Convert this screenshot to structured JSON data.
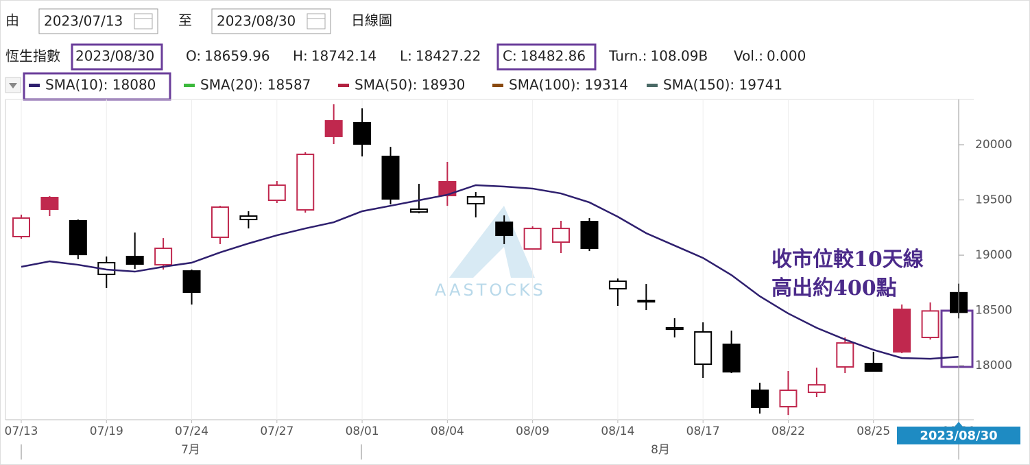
{
  "header": {
    "from_label": "由",
    "from_date": "2023/07/13",
    "to_label": "至",
    "to_date": "2023/08/30",
    "chart_kind": "日線圖"
  },
  "quote": {
    "name": "恆生指數",
    "date": "2023/08/30",
    "items": [
      {
        "label": "O:",
        "value": "18659.96"
      },
      {
        "label": "H:",
        "value": "18742.14"
      },
      {
        "label": "L:",
        "value": "18427.22"
      },
      {
        "label": "C:",
        "value": "18482.86"
      },
      {
        "label": "Turn.:",
        "value": "108.09B"
      },
      {
        "label": "Vol.:",
        "value": "0.000"
      }
    ]
  },
  "legend": [
    {
      "text": "SMA(10): 18080",
      "color": "#2e1f6e",
      "active": true
    },
    {
      "text": "SMA(20): 18587",
      "color": "#3cb93c",
      "active": false
    },
    {
      "text": "SMA(50): 18930",
      "color": "#b22240",
      "active": false
    },
    {
      "text": "SMA(100): 19314",
      "color": "#8a4a10",
      "active": false
    },
    {
      "text": "SMA(150): 19741",
      "color": "#4a6a66",
      "active": false
    }
  ],
  "chart_data": {
    "type": "candlestick",
    "categories": [
      "07/13",
      null,
      null,
      "07/19",
      null,
      null,
      "07/24",
      null,
      null,
      "07/27",
      null,
      null,
      "08/01",
      null,
      null,
      "08/04",
      null,
      null,
      "08/09",
      null,
      null,
      "08/14",
      null,
      null,
      "08/17",
      null,
      null,
      "08/22",
      null,
      null,
      "08/25",
      null,
      null,
      "08/30"
    ],
    "months": [
      "7月",
      "8月"
    ],
    "open": [
      19168,
      19522,
      19311,
      18826,
      18988,
      18913,
      18857,
      19162,
      19323,
      19497,
      19410,
      20217,
      20199,
      19894,
      19391,
      19665,
      19466,
      19298,
      19056,
      19118,
      19304,
      18696,
      18578,
      18329,
      18013,
      18193,
      17777,
      17628,
      17758,
      17988,
      18019,
      18510,
      18255,
      18659.96
    ],
    "high": [
      19367,
      19534,
      19323,
      18988,
      19205,
      19155,
      18870,
      19447,
      19398,
      19671,
      19932,
      20366,
      20329,
      19981,
      19646,
      19845,
      19572,
      19360,
      19261,
      19311,
      19336,
      18789,
      18739,
      18429,
      18392,
      18317,
      17845,
      17951,
      17982,
      18255,
      18125,
      18553,
      18572,
      18742.14
    ],
    "low": [
      19149,
      19354,
      18963,
      18702,
      18876,
      18870,
      18553,
      19100,
      19242,
      19472,
      19385,
      20006,
      19894,
      19460,
      19379,
      19447,
      19342,
      19100,
      19050,
      19019,
      19037,
      18541,
      18503,
      18255,
      17889,
      17932,
      17566,
      17553,
      17715,
      17932,
      17951,
      18112,
      18236,
      18427.22
    ],
    "close": [
      19336,
      19416,
      19006,
      18932,
      18919,
      19062,
      18665,
      19435,
      19354,
      19634,
      19913,
      20075,
      20006,
      19509,
      19416,
      19540,
      19528,
      19180,
      19242,
      19242,
      19062,
      18764,
      18590,
      18342,
      18305,
      17944,
      17622,
      17777,
      17826,
      18205,
      17951,
      18125,
      18495,
      18482.86
    ],
    "up_color": "#c0284e",
    "down_color": "#000000",
    "series": [
      {
        "name": "SMA(10)",
        "color": "#2e1f6e",
        "values": [
          18895,
          18944,
          18913,
          18870,
          18851,
          18895,
          18932,
          19025,
          19106,
          19180,
          19242,
          19298,
          19398,
          19447,
          19497,
          19547,
          19634,
          19621,
          19603,
          19559,
          19478,
          19348,
          19199,
          19087,
          18975,
          18820,
          18628,
          18472,
          18342,
          18236,
          18143,
          18069,
          18062,
          18080
        ]
      }
    ],
    "ylim": [
      17510,
      20410
    ],
    "yticks": [
      18000,
      18500,
      19000,
      19500,
      20000
    ],
    "crosshair_label": "2023/08/30",
    "annotation": [
      "收市位較10天線",
      "高出約400點"
    ],
    "watermark": "AASTOCKS"
  }
}
